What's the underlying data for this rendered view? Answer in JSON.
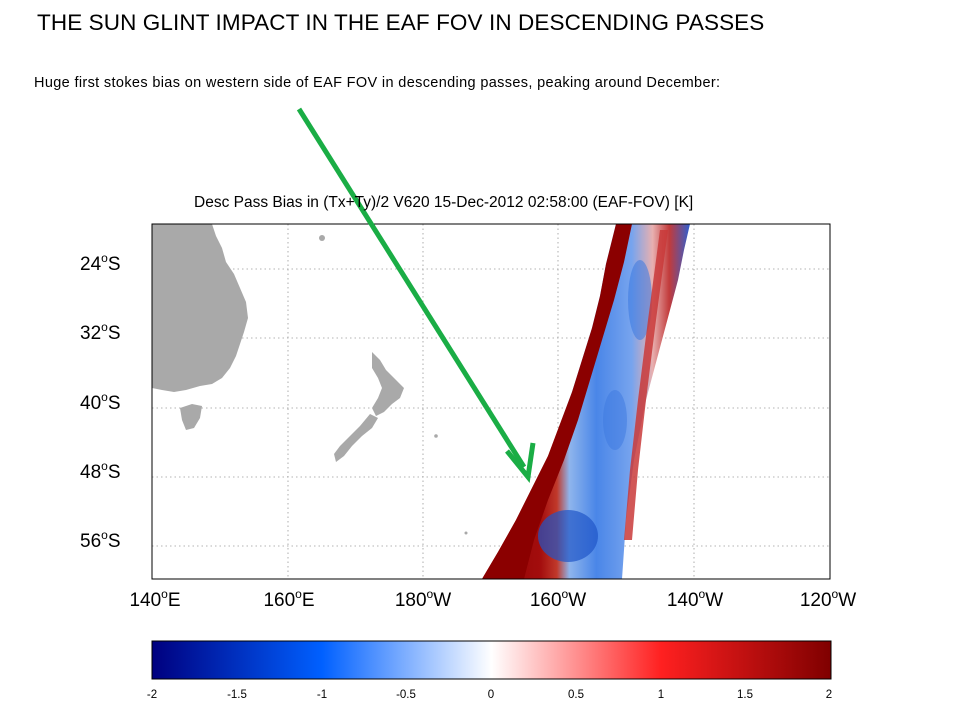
{
  "slide": {
    "title": "THE SUN GLINT IMPACT IN THE EAF FOV IN DESCENDING PASSES",
    "subtitle": "Huge first stokes bias on western side of EAF FOV in descending passes, peaking around December:"
  },
  "map": {
    "title": "Desc Pass Bias in (Tx+Ty)/2 V620 15-Dec-2012 02:58:00 (EAF-FOV) [K]",
    "lat_ticks": [
      {
        "num": "24",
        "deg": "o",
        "hemi": "S"
      },
      {
        "num": "32",
        "deg": "o",
        "hemi": "S"
      },
      {
        "num": "40",
        "deg": "o",
        "hemi": "S"
      },
      {
        "num": "48",
        "deg": "o",
        "hemi": "S"
      },
      {
        "num": "56",
        "deg": "o",
        "hemi": "S"
      }
    ],
    "lon_ticks": [
      {
        "num": "140",
        "deg": "o",
        "hemi": "E"
      },
      {
        "num": "160",
        "deg": "o",
        "hemi": "E"
      },
      {
        "num": "180",
        "deg": "o",
        "hemi": "W"
      },
      {
        "num": "160",
        "deg": "o",
        "hemi": "W"
      },
      {
        "num": "140",
        "deg": "o",
        "hemi": "W"
      },
      {
        "num": "120",
        "deg": "o",
        "hemi": "W"
      }
    ],
    "land_color": "#a9a9a9",
    "arrow_color": "#1aad45"
  },
  "colorbar": {
    "ticks": [
      "-2",
      "-1.5",
      "-1",
      "-0.5",
      "0",
      "0.5",
      "1",
      "1.5",
      "2"
    ],
    "colors": [
      "#00007f",
      "#0060ff",
      "#ffffff",
      "#ff2020",
      "#7f0000"
    ]
  }
}
